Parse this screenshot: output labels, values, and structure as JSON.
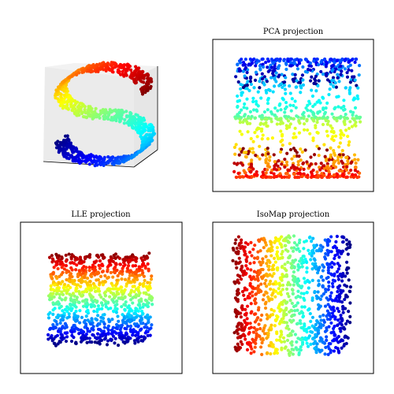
{
  "figure": {
    "colormap": "jet",
    "colormap_stops": [
      "#00007f",
      "#0000ff",
      "#007fff",
      "#00ffff",
      "#7fff7f",
      "#ffff00",
      "#ff7f00",
      "#ff0000",
      "#7f0000"
    ]
  },
  "chart_data": [
    {
      "type": "scatter",
      "variant": "3d",
      "title": "",
      "description": "Original S-curve manifold in 3D, colored by position along the curve",
      "n_points": 1000,
      "color_by": "position along manifold (jet colormap)",
      "axes_visible": false,
      "grid": false
    },
    {
      "type": "scatter",
      "title": "PCA projection",
      "n_points": 1000,
      "color_by": "position along manifold (jet colormap)",
      "pattern": "colors in horizontal bands: cyan/blue top, mixed red/blue/green middle, yellow/orange bottom",
      "axes_ticks": false
    },
    {
      "type": "scatter",
      "title": "LLE projection",
      "n_points": 1000,
      "color_by": "position along manifold (jet colormap)",
      "pattern": "horizontal bands from dark red (top) to dark blue (bottom)",
      "axes_ticks": false
    },
    {
      "type": "scatter",
      "title": "IsoMap projection",
      "n_points": 1000,
      "color_by": "position along manifold (jet colormap)",
      "pattern": "vertical bands from dark red (left) to dark blue (right)",
      "axes_ticks": false
    }
  ]
}
